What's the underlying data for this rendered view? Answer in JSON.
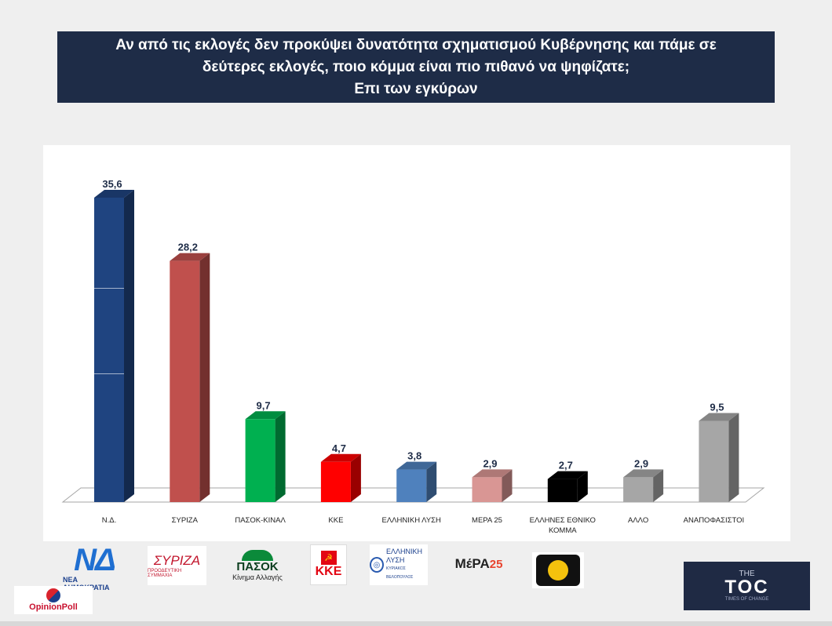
{
  "title": {
    "line1": "Αν από τις εκλογές δεν προκύψει δυνατότητα σχηματισμού Κυβέρνησης και πάμε σε",
    "line2": "δεύτερες εκλογές, ποιο κόμμα είναι πιο πιθανό να ψηφίζατε;",
    "line3": "Επι των εγκύρων"
  },
  "chart_data": {
    "type": "bar",
    "style": "3d-columns",
    "title": "",
    "xlabel": "",
    "ylabel": "",
    "ylim": [
      0,
      40
    ],
    "grid": false,
    "categories": [
      [
        "Ν.Δ."
      ],
      [
        "ΣΥΡΙΖΑ"
      ],
      [
        "ΠΑΣΟΚ-ΚΙΝΑΛ"
      ],
      [
        "ΚΚΕ"
      ],
      [
        "ΕΛΛΗΝΙΚΗ ΛΥΣΗ"
      ],
      [
        "ΜΕΡΑ 25"
      ],
      [
        "ΕΛΛΗΝΕΣ ΕΘΝΙΚΟ",
        "ΚΟΜΜΑ"
      ],
      [
        "ΑΛΛΟ"
      ],
      [
        "ΑΝΑΠΟΦΑΣΙΣΤΟΙ"
      ]
    ],
    "values": [
      35.6,
      28.2,
      9.7,
      4.7,
      3.8,
      2.9,
      2.7,
      2.9,
      9.5
    ],
    "value_labels": [
      "35,6",
      "28,2",
      "9,7",
      "4,7",
      "3,8",
      "2,9",
      "2,7",
      "2,9",
      "9,5"
    ],
    "colors": [
      "#1f4480",
      "#c0504d",
      "#00b050",
      "#ff0000",
      "#4f81bd",
      "#d99694",
      "#000000",
      "#a6a6a6",
      "#a6a6a6"
    ]
  },
  "logos": {
    "nd": {
      "mark": "ΝΔ",
      "text": "ΝΕΑ ΔΗΜΟΚΡΑΤΙΑ"
    },
    "syriza": {
      "mark": "ΣΥΡΙΖΑ",
      "sub": "ΠΡΟΟΔΕΥΤΙΚΗ ΣΥΜΜΑΧΙΑ"
    },
    "pasok": {
      "mark": "ΠΑΣΟΚ",
      "sub": "Κίνημα Αλλαγής"
    },
    "kke": {
      "flag": "☭",
      "mark": "ΚΚΕ"
    },
    "elliniki_lysi": {
      "icon": "globe-icon",
      "line1": "ΕΛΛΗΝΙΚΗ",
      "line2": "ΛΥΣΗ",
      "sub": "ΚΥΡΙΑΚΟΣ ΒΕΛΟΠΟΥΛΟΣ"
    },
    "mera25": {
      "mark": "ΜέΡΑ",
      "num": "25"
    },
    "opinion_poll": {
      "text": "OpinionPoll"
    },
    "the_toc": {
      "the": "THE",
      "mark": "TOC",
      "sub": "TIMES OF CHANGE"
    }
  }
}
